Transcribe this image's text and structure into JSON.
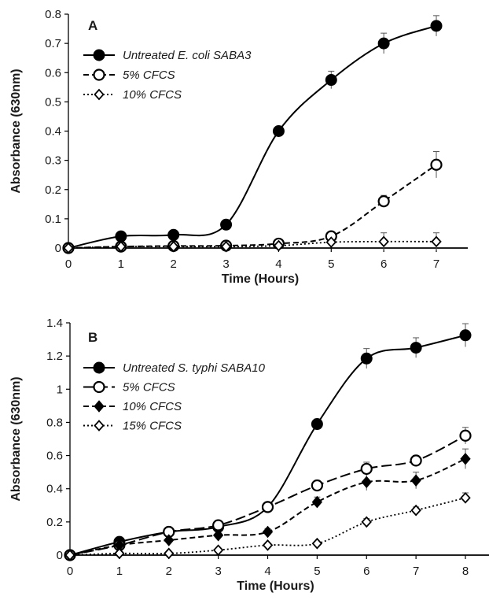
{
  "chart_data": [
    {
      "type": "line",
      "panel_label": "A",
      "xlabel": "Time (Hours)",
      "ylabel": "Absorbance (630nm)",
      "xlim": [
        0,
        7
      ],
      "ylim": [
        0,
        0.8
      ],
      "xticks": [
        "0",
        "1",
        "2",
        "3",
        "4",
        "5",
        "6",
        "7"
      ],
      "yticks": [
        "0",
        "0.1",
        "0.2",
        "0.3",
        "0.4",
        "0.5",
        "0.6",
        "0.7",
        "0.8"
      ],
      "legend_position": "top-left",
      "x": [
        0,
        1,
        2,
        3,
        4,
        5,
        6,
        7
      ],
      "series": [
        {
          "name": "Untreated E. coli SABA3",
          "marker": "filled-circle",
          "line": "solid",
          "values": [
            0.0,
            0.04,
            0.045,
            0.08,
            0.4,
            0.575,
            0.7,
            0.76
          ],
          "errors": [
            0,
            0.005,
            0.005,
            0.008,
            0.01,
            0.03,
            0.035,
            0.035
          ]
        },
        {
          "name": "5% CFCS",
          "marker": "open-circle",
          "line": "dashed",
          "values": [
            0.0,
            0.005,
            0.007,
            0.008,
            0.015,
            0.04,
            0.16,
            0.285
          ],
          "errors": [
            0,
            0.002,
            0.002,
            0.002,
            0.005,
            0.01,
            0.02,
            0.045
          ]
        },
        {
          "name": "10% CFCS",
          "marker": "open-diamond",
          "line": "dotted",
          "values": [
            0.0,
            0.005,
            0.005,
            0.005,
            0.008,
            0.02,
            0.022,
            0.022
          ],
          "errors": [
            0,
            0.002,
            0.002,
            0.002,
            0.003,
            0.005,
            0.03,
            0.03
          ]
        }
      ]
    },
    {
      "type": "line",
      "panel_label": "B",
      "xlabel": "Time (Hours)",
      "ylabel": "Absorbance (630nm)",
      "xlim": [
        0,
        8
      ],
      "ylim": [
        0,
        1.4
      ],
      "xticks": [
        "0",
        "1",
        "2",
        "3",
        "4",
        "5",
        "6",
        "7",
        "8"
      ],
      "yticks": [
        "0",
        "0.2",
        "0.4",
        "0.6",
        "0.8",
        "1",
        "1.2",
        "1.4"
      ],
      "legend_position": "top-left",
      "x": [
        0,
        1,
        2,
        3,
        4,
        5,
        6,
        7,
        8
      ],
      "series": [
        {
          "name": "Untreated S. typhi SABA10",
          "marker": "filled-circle",
          "line": "solid",
          "values": [
            0.0,
            0.08,
            0.14,
            0.17,
            0.29,
            0.79,
            1.185,
            1.25,
            1.325
          ],
          "errors": [
            0,
            0.01,
            0.01,
            0.01,
            0.02,
            0.03,
            0.06,
            0.06,
            0.07
          ]
        },
        {
          "name": "5% CFCS",
          "marker": "open-circle",
          "line": "long-dash",
          "values": [
            0.0,
            0.06,
            0.14,
            0.18,
            0.29,
            0.42,
            0.52,
            0.57,
            0.72
          ],
          "errors": [
            0,
            0.01,
            0.01,
            0.01,
            0.02,
            0.02,
            0.04,
            0.03,
            0.05
          ]
        },
        {
          "name": "10% CFCS",
          "marker": "filled-diamond",
          "line": "dashed",
          "values": [
            0.0,
            0.06,
            0.09,
            0.12,
            0.14,
            0.32,
            0.44,
            0.45,
            0.58
          ],
          "errors": [
            0,
            0.01,
            0.01,
            0.01,
            0.02,
            0.03,
            0.05,
            0.05,
            0.06
          ]
        },
        {
          "name": "15% CFCS",
          "marker": "open-diamond",
          "line": "dotted",
          "values": [
            0.0,
            0.01,
            0.01,
            0.03,
            0.06,
            0.07,
            0.2,
            0.27,
            0.345
          ],
          "errors": [
            0,
            0.005,
            0.005,
            0.005,
            0.01,
            0.01,
            0.02,
            0.02,
            0.03
          ]
        }
      ]
    }
  ]
}
